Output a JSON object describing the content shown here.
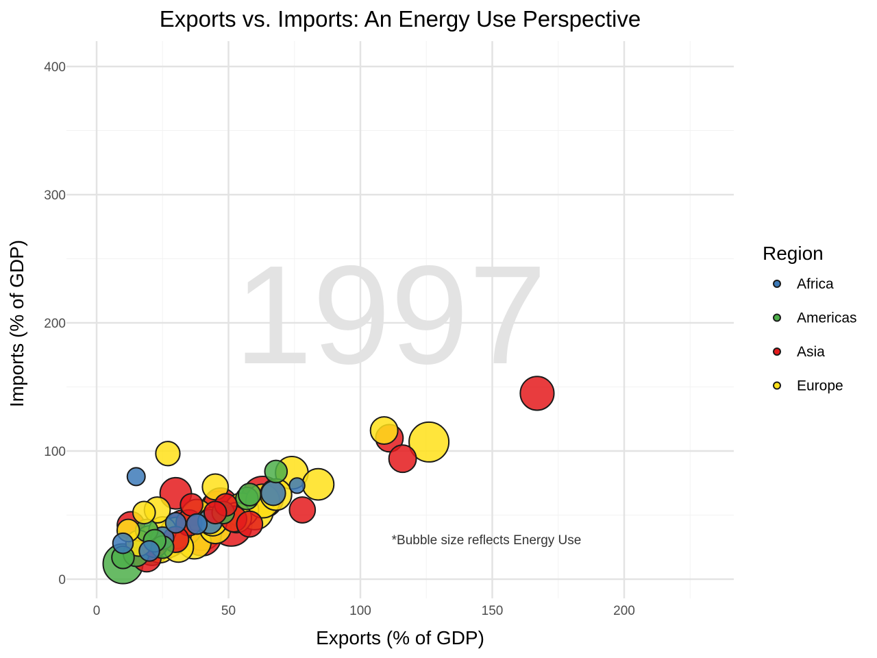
{
  "chart_data": {
    "type": "scatter",
    "title": "Exports vs. Imports: An Energy Use Perspective",
    "xlabel": "Exports (% of GDP)",
    "ylabel": "Imports (% of GDP)",
    "xlim": [
      -10,
      240
    ],
    "ylim": [
      -15,
      420
    ],
    "x_ticks": [
      0,
      50,
      100,
      150,
      200
    ],
    "y_ticks": [
      0,
      100,
      200,
      300,
      400
    ],
    "frame_label": "1997",
    "annotation": "*Bubble size reflects Energy Use",
    "grid": true,
    "legend": {
      "title": "Region",
      "position": "right"
    },
    "size_scale": "relative energy use (1-10)",
    "series": [
      {
        "name": "Africa",
        "color": "#3d7ab8",
        "points": [
          [
            15,
            80,
            1
          ],
          [
            76,
            73,
            0.6
          ],
          [
            67,
            67,
            2.5
          ],
          [
            30,
            44,
            1.5
          ],
          [
            43,
            45,
            2.5
          ],
          [
            25,
            32,
            2
          ],
          [
            10,
            28,
            1.5
          ],
          [
            38,
            43,
            1.5
          ],
          [
            20,
            22,
            1.5
          ]
        ]
      },
      {
        "name": "Americas",
        "color": "#4daf4a",
        "points": [
          [
            10,
            12,
            9
          ],
          [
            10,
            17,
            2
          ],
          [
            15,
            20,
            3
          ],
          [
            19,
            38,
            2
          ],
          [
            21,
            23,
            5
          ],
          [
            25,
            25,
            2
          ],
          [
            22,
            30,
            2
          ],
          [
            57,
            63,
            2
          ],
          [
            68,
            84,
            2
          ],
          [
            48,
            52,
            2
          ],
          [
            58,
            66,
            2
          ]
        ]
      },
      {
        "name": "Asia",
        "color": "#e41a1c",
        "points": [
          [
            167,
            145,
            6
          ],
          [
            111,
            110,
            3.5
          ],
          [
            116,
            94,
            3.5
          ],
          [
            78,
            54,
            3
          ],
          [
            30,
            67,
            5
          ],
          [
            51,
            42,
            10
          ],
          [
            63,
            64,
            10
          ],
          [
            47,
            58,
            6
          ],
          [
            52,
            47,
            3
          ],
          [
            58,
            43,
            3
          ],
          [
            36,
            58,
            2
          ],
          [
            49,
            58,
            2
          ],
          [
            45,
            52,
            2
          ],
          [
            13,
            42,
            3.5
          ],
          [
            19,
            17,
            4
          ],
          [
            33,
            40,
            7
          ],
          [
            40,
            33,
            8
          ],
          [
            28,
            30,
            5
          ],
          [
            35,
            44,
            3
          ],
          [
            22,
            27,
            3
          ],
          [
            30,
            31,
            3
          ]
        ]
      },
      {
        "name": "Europe",
        "color": "#ffe119",
        "points": [
          [
            126,
            107,
            9
          ],
          [
            109,
            116,
            3.5
          ],
          [
            84,
            74,
            5
          ],
          [
            74,
            83,
            5.5
          ],
          [
            45,
            72,
            3
          ],
          [
            27,
            98,
            2.5
          ],
          [
            23,
            54,
            3
          ],
          [
            18,
            52,
            2
          ],
          [
            12,
            38,
            2
          ],
          [
            16,
            28,
            3
          ],
          [
            24,
            25,
            5
          ],
          [
            27,
            29,
            5
          ],
          [
            31,
            25,
            4.5
          ],
          [
            37,
            29,
            6
          ],
          [
            40,
            38,
            9
          ],
          [
            38,
            50,
            5
          ],
          [
            44,
            45,
            4
          ],
          [
            46,
            55,
            6.5
          ],
          [
            55,
            54,
            6
          ],
          [
            60,
            53,
            7.5
          ],
          [
            63,
            61,
            6
          ],
          [
            68,
            66,
            5
          ],
          [
            53,
            48,
            4.5
          ],
          [
            30,
            36,
            5
          ],
          [
            20,
            31,
            3.5
          ],
          [
            25,
            38,
            3.5
          ],
          [
            45,
            40,
            5
          ]
        ]
      }
    ]
  }
}
